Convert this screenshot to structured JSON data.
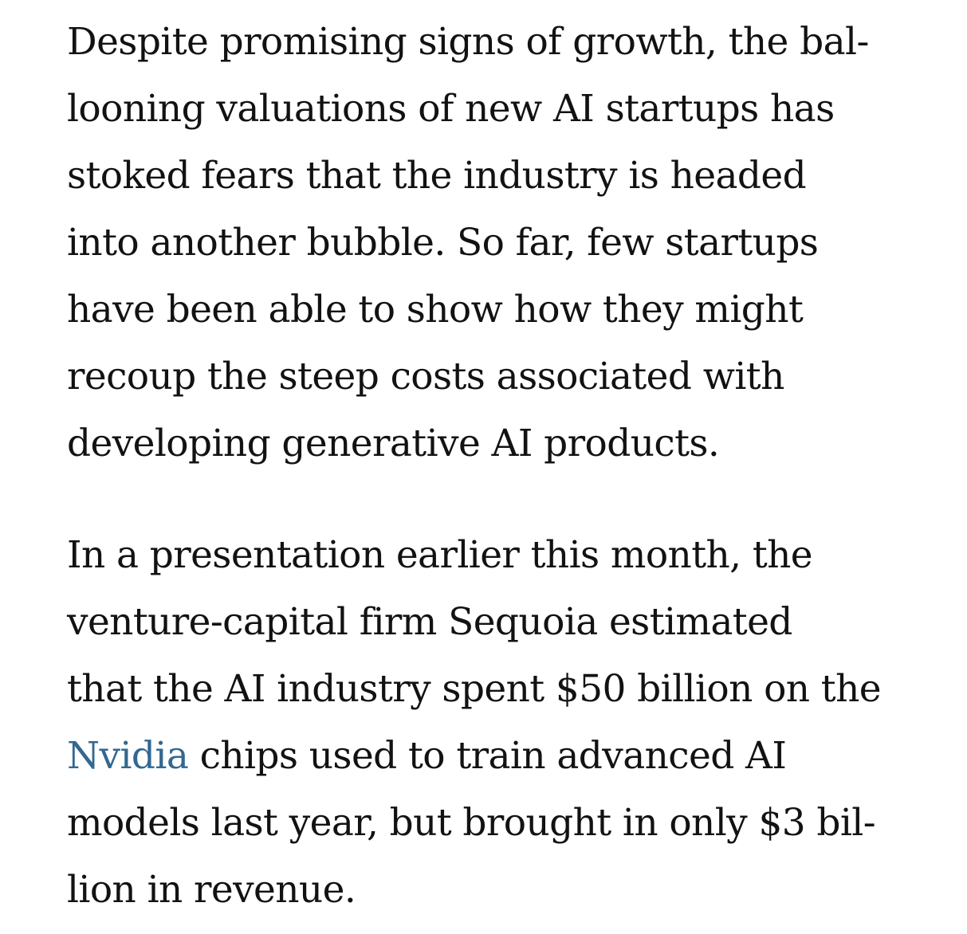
{
  "article": {
    "paragraphs": [
      {
        "lines": [
          "Despite promising signs of growth, the bal-",
          "looning valuations of new AI startups has",
          "stoked fears that the industry is headed",
          "into another bubble. So far, few startups",
          "have been able to show how they might",
          "recoup the steep costs associated with",
          "developing generative AI products."
        ]
      },
      {
        "lines": [
          "In a presentation earlier this month, the",
          "venture-capital firm Sequoia estimated",
          "that the AI industry spent $50 billion on the"
        ],
        "link_line": {
          "link_text": "Nvidia",
          "after_text": " chips used to train advanced AI"
        },
        "lines_after": [
          "models last year, but brought in only $3 bil-",
          "lion in revenue."
        ]
      }
    ],
    "link_color": "#326891",
    "text_color": "#121212"
  }
}
